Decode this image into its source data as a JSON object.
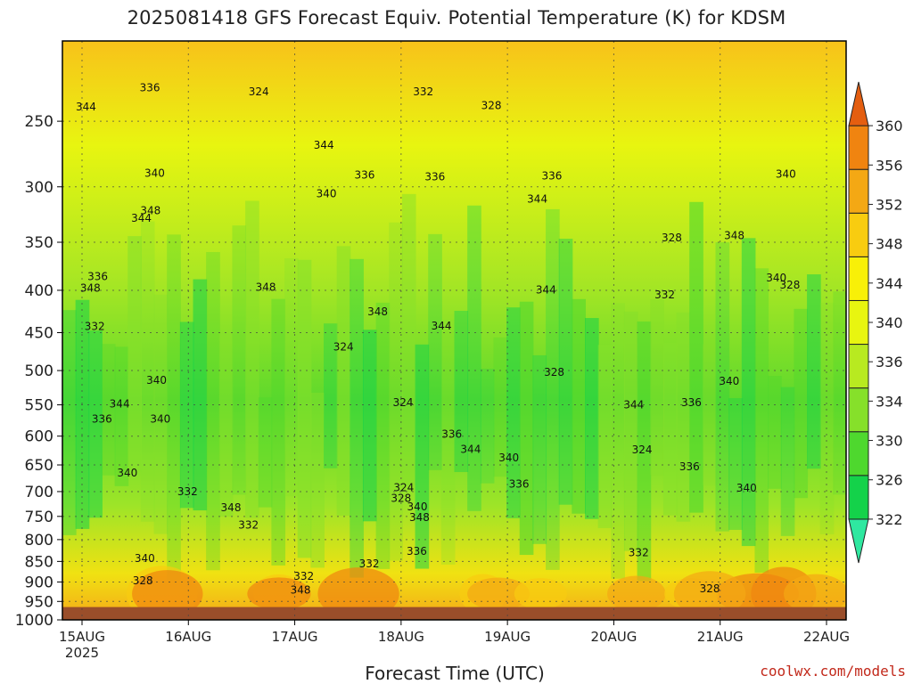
{
  "chart_data": {
    "type": "heatmap",
    "title": "2025081418 GFS Forecast Equiv. Potential Temperature (K) for KDSM",
    "xlabel": "Forecast Time (UTC)",
    "ylabel": "",
    "x_ticks": [
      "15AUG",
      "16AUG",
      "17AUG",
      "18AUG",
      "19AUG",
      "20AUG",
      "21AUG",
      "22AUG"
    ],
    "x_year_label": "2025",
    "y_ticks": [
      250,
      300,
      350,
      400,
      450,
      500,
      550,
      600,
      650,
      700,
      750,
      800,
      850,
      900,
      950,
      1000
    ],
    "y_scale": "log-pressure",
    "y_range_hpa": [
      200,
      1000
    ],
    "ground_fill_below_hpa": 965,
    "colorbar": {
      "levels": [
        322,
        326,
        330,
        334,
        336,
        340,
        344,
        348,
        352,
        356,
        360
      ],
      "colors": [
        "#2fe8a0",
        "#14d24a",
        "#4ed82e",
        "#86e02a",
        "#b8ea20",
        "#e8f510",
        "#f8f008",
        "#f8cc10",
        "#f4a814",
        "#f08410",
        "#e45e10"
      ]
    },
    "contour_labels": [
      "348",
      "344",
      "340",
      "336",
      "332",
      "328",
      "324"
    ],
    "grid": true,
    "legend": "colorbar-right"
  },
  "credit": "coolwx.com/models"
}
